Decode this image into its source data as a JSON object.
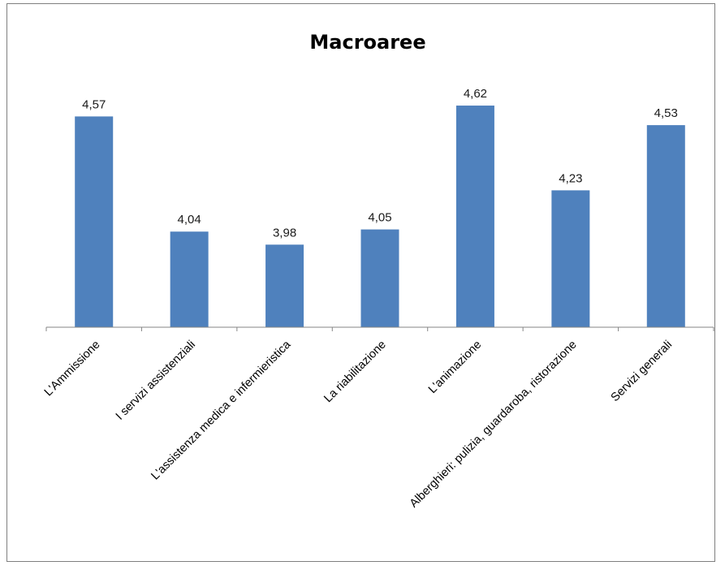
{
  "chart_data": {
    "type": "bar",
    "title": "Macroaree",
    "xlabel": "",
    "ylabel": "",
    "categories": [
      "L'Ammissione",
      "I servizi assistenziali",
      "L'assistenza medica e infermieristica",
      "La riabilitazione",
      "L'animazione",
      "Alberghieri: pulizia, guardaroba, ristorazione",
      "Servizi generali"
    ],
    "series": [
      {
        "values": [
          4.57,
          4.04,
          3.98,
          4.05,
          4.62,
          4.23,
          4.53
        ],
        "labels": [
          "4,57",
          "4,04",
          "3,98",
          "4,05",
          "4,62",
          "4,23",
          "4,53"
        ],
        "color": "#4f81bd"
      }
    ],
    "ylim": [
      3.6,
      4.65
    ],
    "grid": false,
    "legend": "none"
  }
}
